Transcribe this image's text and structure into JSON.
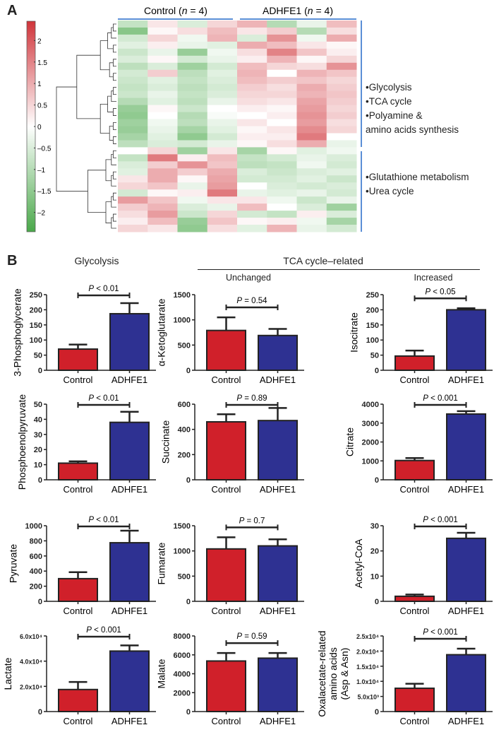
{
  "panel_a": {
    "letter": "A",
    "group_labels": [
      {
        "name": "Control",
        "n_text": "n",
        "eq": " = 4"
      },
      {
        "name": "ADHFE1",
        "n_text": "n",
        "eq": " = 4"
      }
    ],
    "cluster_notes": {
      "top": [
        "•Glycolysis",
        "•TCA cycle",
        "•Polyamine &",
        "amino acids synthesis"
      ],
      "bottom": [
        "•Glutathione metabolism",
        "•Urea cycle"
      ]
    },
    "bracket_color": "#5b8fd6"
  },
  "panel_b": {
    "letter": "B",
    "headers": {
      "glycolysis": "Glycolysis",
      "tca": "TCA cycle–related",
      "unchanged": "Unchanged",
      "increased": "Increased"
    }
  },
  "colors": {
    "control": "#d0202a",
    "adhfe1": "#2e3192",
    "heat_high": "#d0343a",
    "heat_mid": "#ffffff",
    "heat_low": "#4aa84a"
  },
  "chart_data": [
    {
      "type": "heatmap",
      "columns": [
        "Control",
        "Control",
        "Control",
        "Control",
        "ADHFE1",
        "ADHFE1",
        "ADHFE1",
        "ADHFE1"
      ],
      "colorbar": {
        "range": [
          -2.45,
          2.45
        ],
        "ticks": [
          2,
          1.5,
          1,
          0.5,
          0,
          -0.5,
          -1,
          -1.5,
          -2
        ],
        "tick_labels": [
          "2",
          "1.5",
          "1",
          "0.5",
          "0",
          "–0.5",
          "–1",
          "–1.5",
          "–2"
        ]
      },
      "row_clusters": [
        18,
        12
      ],
      "values": [
        [
          -0.8,
          0.3,
          -0.5,
          0.5,
          0.9,
          -1.0,
          -0.3,
          0.8
        ],
        [
          -1.6,
          0.1,
          0.4,
          0.8,
          0.3,
          0.6,
          -1.0,
          0.4
        ],
        [
          -0.6,
          0.5,
          -0.2,
          0.9,
          -0.5,
          1.3,
          -0.2,
          1.0
        ],
        [
          -0.4,
          0.2,
          -0.3,
          -0.4,
          1.0,
          0.8,
          0.3,
          0.1
        ],
        [
          -0.7,
          -0.3,
          -1.4,
          -0.2,
          0.4,
          1.5,
          0.7,
          0.2
        ],
        [
          -0.5,
          0.1,
          -0.6,
          -0.3,
          0.2,
          0.9,
          0.1,
          0.5
        ],
        [
          -0.9,
          -0.5,
          -1.3,
          -0.6,
          0.8,
          0.5,
          0.4,
          1.3
        ],
        [
          -0.6,
          0.6,
          -0.9,
          -0.4,
          0.9,
          0.0,
          0.9,
          0.7
        ],
        [
          -0.7,
          -0.4,
          -0.8,
          -0.5,
          0.8,
          0.6,
          0.7,
          0.5
        ],
        [
          -0.8,
          -0.5,
          -0.9,
          -0.6,
          0.6,
          0.4,
          1.0,
          0.6
        ],
        [
          -0.7,
          -0.3,
          -0.8,
          -0.5,
          0.5,
          0.5,
          0.9,
          0.7
        ],
        [
          -1.0,
          -0.4,
          -0.9,
          -0.3,
          0.4,
          0.3,
          1.1,
          0.6
        ],
        [
          -1.4,
          0.1,
          -0.7,
          0.0,
          0.2,
          0.1,
          1.2,
          0.5
        ],
        [
          -1.5,
          0.0,
          -1.0,
          -0.1,
          0.0,
          0.2,
          1.3,
          0.6
        ],
        [
          -1.3,
          -0.2,
          -0.9,
          -0.3,
          0.3,
          0.0,
          1.2,
          0.4
        ],
        [
          -1.4,
          -0.3,
          -1.2,
          -0.4,
          0.1,
          0.3,
          1.4,
          0.5
        ],
        [
          -1.2,
          -0.4,
          -1.5,
          -0.6,
          0.2,
          0.2,
          1.6,
          0.0
        ],
        [
          -0.9,
          -0.5,
          -0.6,
          -0.3,
          0.1,
          0.4,
          1.0,
          -0.3
        ],
        [
          0.0,
          0.5,
          -1.3,
          0.3,
          -1.2,
          0.1,
          -0.4,
          -0.2
        ],
        [
          -0.8,
          1.6,
          0.2,
          0.8,
          -0.8,
          -0.6,
          -0.3,
          -0.5
        ],
        [
          -0.5,
          0.6,
          1.3,
          0.7,
          -0.9,
          -0.8,
          -0.2,
          -0.6
        ],
        [
          -0.4,
          1.0,
          0.6,
          1.0,
          -0.5,
          -0.7,
          -0.5,
          -0.4
        ],
        [
          0.3,
          1.0,
          0.1,
          1.1,
          -0.6,
          -0.6,
          -0.4,
          -0.7
        ],
        [
          0.5,
          0.7,
          -0.3,
          1.2,
          0.0,
          -0.5,
          -0.6,
          -0.5
        ],
        [
          -0.6,
          0.1,
          0.2,
          1.6,
          -0.3,
          -0.4,
          -0.3,
          -0.6
        ],
        [
          1.2,
          0.7,
          -0.2,
          0.3,
          0.3,
          -0.2,
          -0.7,
          -0.3
        ],
        [
          0.6,
          0.9,
          -0.5,
          -0.3,
          0.8,
          0.0,
          -0.5,
          -1.3
        ],
        [
          0.4,
          1.2,
          -0.7,
          0.5,
          -0.6,
          -0.8,
          0.2,
          -0.5
        ],
        [
          0.2,
          0.8,
          -1.4,
          0.7,
          0.1,
          0.2,
          -0.2,
          -1.2
        ],
        [
          0.5,
          0.3,
          -1.5,
          0.4,
          -0.4,
          0.9,
          -0.3,
          -0.6
        ]
      ]
    },
    {
      "type": "bar",
      "group": "Glycolysis",
      "ylabel": [
        "3-Phosphoglycerate"
      ],
      "categories": [
        "Control",
        "ADHFE1"
      ],
      "values": [
        70,
        187
      ],
      "errors": [
        15,
        35
      ],
      "ylim": [
        0,
        250
      ],
      "ticks": [
        0,
        50,
        100,
        150,
        200,
        250
      ],
      "tick_labels": [
        "0",
        "50",
        "100",
        "150",
        "200",
        "250"
      ],
      "p_label": "P",
      "p_text": " < 0.01"
    },
    {
      "type": "bar",
      "group": "Glycolysis",
      "ylabel": [
        "Phosphoenolpyruvate"
      ],
      "categories": [
        "Control",
        "ADHFE1"
      ],
      "values": [
        11,
        38
      ],
      "errors": [
        1.2,
        7
      ],
      "ylim": [
        0,
        50
      ],
      "ticks": [
        0,
        10,
        20,
        30,
        40,
        50
      ],
      "tick_labels": [
        "0",
        "10",
        "20",
        "30",
        "40",
        "50"
      ],
      "p_label": "P",
      "p_text": " < 0.01"
    },
    {
      "type": "bar",
      "group": "Glycolysis",
      "ylabel": [
        "Pyruvate"
      ],
      "categories": [
        "Control",
        "ADHFE1"
      ],
      "values": [
        300,
        775
      ],
      "errors": [
        85,
        160
      ],
      "ylim": [
        0,
        1000
      ],
      "ticks": [
        0,
        200,
        400,
        600,
        800,
        1000
      ],
      "tick_labels": [
        "0",
        "200",
        "400",
        "600",
        "800",
        "1000"
      ],
      "p_label": "P",
      "p_text": " < 0.01"
    },
    {
      "type": "bar",
      "group": "Glycolysis",
      "ylabel": [
        "Lactate"
      ],
      "categories": [
        "Control",
        "ADHFE1"
      ],
      "values": [
        17500,
        48000
      ],
      "errors": [
        6000,
        4500
      ],
      "ylim": [
        0,
        60000
      ],
      "ticks": [
        0,
        20000,
        40000,
        60000
      ],
      "tick_labels": [
        "0",
        "2.0x10⁴",
        "4.0x10⁴",
        "6.0x10⁴"
      ],
      "p_label": "P",
      "p_text": " < 0.001"
    },
    {
      "type": "bar",
      "group": "Unchanged",
      "ylabel": [
        "α-Ketoglutarate"
      ],
      "categories": [
        "Control",
        "ADHFE1"
      ],
      "values": [
        790,
        690
      ],
      "errors": [
        260,
        130
      ],
      "ylim": [
        0,
        1500
      ],
      "ticks": [
        0,
        500,
        1000,
        1500
      ],
      "tick_labels": [
        "0",
        "500",
        "1000",
        "1500"
      ],
      "p_label": "P",
      "p_text": " = 0.54"
    },
    {
      "type": "bar",
      "group": "Unchanged",
      "ylabel": [
        "Succinate"
      ],
      "categories": [
        "Control",
        "ADHFE1"
      ],
      "values": [
        460,
        470
      ],
      "errors": [
        60,
        100
      ],
      "ylim": [
        0,
        600
      ],
      "ticks": [
        0,
        200,
        400,
        600
      ],
      "tick_labels": [
        "0",
        "200",
        "400",
        "600"
      ],
      "p_label": "P",
      "p_text": " = 0.89"
    },
    {
      "type": "bar",
      "group": "Unchanged",
      "ylabel": [
        "Fumarate"
      ],
      "categories": [
        "Control",
        "ADHFE1"
      ],
      "values": [
        1040,
        1100
      ],
      "errors": [
        230,
        130
      ],
      "ylim": [
        0,
        1500
      ],
      "ticks": [
        0,
        500,
        1000,
        1500
      ],
      "tick_labels": [
        "0",
        "500",
        "1000",
        "1500"
      ],
      "p_label": "P",
      "p_text": " = 0.7"
    },
    {
      "type": "bar",
      "group": "Unchanged",
      "ylabel": [
        "Malate"
      ],
      "categories": [
        "Control",
        "ADHFE1"
      ],
      "values": [
        5350,
        5650
      ],
      "errors": [
        850,
        550
      ],
      "ylim": [
        0,
        8000
      ],
      "ticks": [
        0,
        2000,
        4000,
        6000,
        8000
      ],
      "tick_labels": [
        "0",
        "2000",
        "4000",
        "6000",
        "8000"
      ],
      "p_label": "P",
      "p_text": " = 0.59"
    },
    {
      "type": "bar",
      "group": "Increased",
      "ylabel": [
        "Isocitrate"
      ],
      "categories": [
        "Control",
        "ADHFE1"
      ],
      "values": [
        47,
        200
      ],
      "errors": [
        18,
        5
      ],
      "ylim": [
        0,
        250
      ],
      "ticks": [
        0,
        50,
        100,
        150,
        200,
        250
      ],
      "tick_labels": [
        "0",
        "50",
        "100",
        "150",
        "200",
        "250"
      ],
      "p_label": "P",
      "p_text": " < 0.05"
    },
    {
      "type": "bar",
      "group": "Increased",
      "ylabel": [
        "Citrate"
      ],
      "categories": [
        "Control",
        "ADHFE1"
      ],
      "values": [
        1020,
        3480
      ],
      "errors": [
        130,
        150
      ],
      "ylim": [
        0,
        4000
      ],
      "ticks": [
        0,
        1000,
        2000,
        3000,
        4000
      ],
      "tick_labels": [
        "0",
        "1000",
        "2000",
        "3000",
        "4000"
      ],
      "p_label": "P",
      "p_text": " < 0.001"
    },
    {
      "type": "bar",
      "group": "Increased",
      "ylabel": [
        "Acetyl-CoA"
      ],
      "categories": [
        "Control",
        "ADHFE1"
      ],
      "values": [
        2,
        25
      ],
      "errors": [
        0.7,
        2.2
      ],
      "ylim": [
        0,
        30
      ],
      "ticks": [
        0,
        10,
        20,
        30
      ],
      "tick_labels": [
        "0",
        "10",
        "20",
        "30"
      ],
      "p_label": "P",
      "p_text": " < 0.001"
    },
    {
      "type": "bar",
      "group": "Increased",
      "ylabel": [
        "Oxalacetate-related",
        "amino acids",
        "(Asp & Asn)"
      ],
      "categories": [
        "Control",
        "ADHFE1"
      ],
      "values": [
        7700,
        18800
      ],
      "errors": [
        1500,
        2000
      ],
      "ylim": [
        0,
        25000
      ],
      "ticks": [
        0,
        5000,
        10000,
        15000,
        20000,
        25000
      ],
      "tick_labels": [
        "0",
        "5.0x10³",
        "1.0x10⁴",
        "1.5x10⁴",
        "2.0x10⁴",
        "2.5x10⁴"
      ],
      "p_label": "P",
      "p_text": " < 0.001"
    }
  ]
}
